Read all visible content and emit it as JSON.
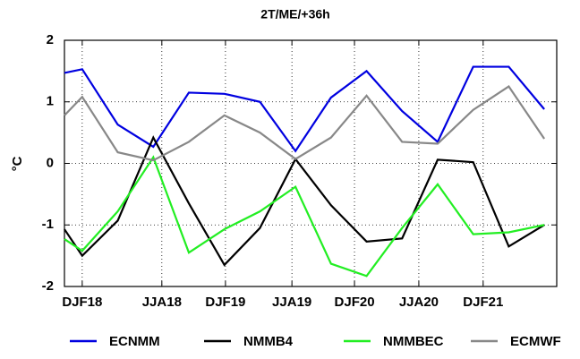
{
  "chart_data": {
    "type": "line",
    "title": "2T/ME/+36h",
    "y_label": "°C",
    "x": [
      -0.5,
      0,
      1,
      2,
      3,
      4,
      5,
      6,
      7,
      8,
      9,
      10,
      11,
      12,
      13
    ],
    "xlim": [
      -0.5,
      13.35
    ],
    "xticks": [
      {
        "value": 0,
        "label": "DJF18"
      },
      {
        "value": 2.24,
        "label": "JJA18"
      },
      {
        "value": 4.03,
        "label": "DJF19"
      },
      {
        "value": 5.9,
        "label": "JJA19"
      },
      {
        "value": 7.66,
        "label": "DJF20"
      },
      {
        "value": 9.47,
        "label": "JJA20"
      },
      {
        "value": 11.28,
        "label": "DJF21"
      }
    ],
    "ylim": [
      -2,
      2
    ],
    "yticks": [
      -2,
      -1,
      0,
      1,
      2
    ],
    "grid": true,
    "series": [
      {
        "name": "ECNMM",
        "color": "#0000e0",
        "values": [
          1.47,
          1.53,
          0.63,
          0.27,
          1.15,
          1.13,
          1.0,
          0.2,
          1.07,
          1.5,
          0.85,
          0.35,
          1.57,
          1.57,
          0.88
        ]
      },
      {
        "name": "NMMB4",
        "color": "#000000",
        "values": [
          -1.07,
          -1.5,
          -0.93,
          0.42,
          -0.65,
          -1.65,
          -1.05,
          0.07,
          -0.68,
          -1.27,
          -1.22,
          0.06,
          0.02,
          -1.35,
          -1.0
        ]
      },
      {
        "name": "NMMBEC",
        "color": "#22ee22",
        "values": [
          -1.23,
          -1.42,
          -0.78,
          0.1,
          -1.45,
          -1.07,
          -0.78,
          -0.38,
          -1.63,
          -1.83,
          -1.05,
          -0.34,
          -1.15,
          -1.12,
          -1.0
        ]
      },
      {
        "name": "ECMWF",
        "color": "#888888",
        "values": [
          0.78,
          1.08,
          0.18,
          0.05,
          0.35,
          0.78,
          0.5,
          0.07,
          0.42,
          1.1,
          0.35,
          0.32,
          0.87,
          1.25,
          0.4
        ]
      }
    ]
  }
}
